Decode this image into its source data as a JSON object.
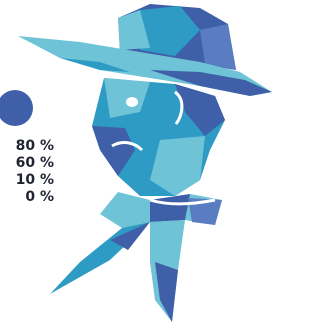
{
  "labels": [
    "80 %",
    "60 %",
    "10 %",
    "0 %"
  ]
}
